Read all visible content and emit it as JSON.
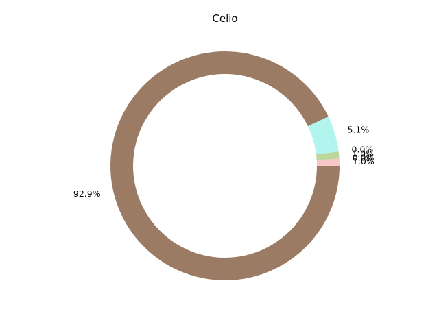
{
  "chart_data": {
    "type": "pie",
    "title": "Celio",
    "donut": true,
    "start_angle_deg": 0,
    "direction": "counterclockwise",
    "slices": [
      {
        "value": 1.0,
        "label": "1.0%",
        "color": "#f7c6c7"
      },
      {
        "value": 0.0,
        "label": "0.0%",
        "color": "#d9d9d9"
      },
      {
        "value": 0.0,
        "label": "0.0%",
        "color": "#e8e8a0"
      },
      {
        "value": 1.0,
        "label": "1.0%",
        "color": "#bcd69b"
      },
      {
        "value": 0.0,
        "label": "0.0%",
        "color": "#b3d9e8"
      },
      {
        "value": 5.1,
        "label": "5.1%",
        "color": "#b2f5ee"
      },
      {
        "value": 92.9,
        "label": "92.9%",
        "color": "#9c7b65"
      }
    ]
  }
}
